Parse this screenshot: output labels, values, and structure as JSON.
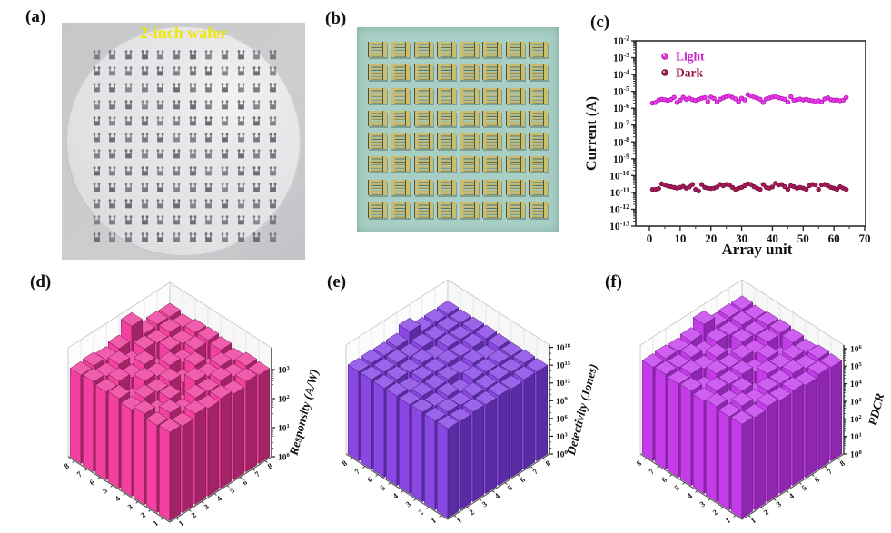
{
  "figure": {
    "panels": {
      "a": {
        "label": "(a)",
        "photo_caption": "2-inch wafer",
        "wafer_grid_rows": 12,
        "wafer_grid_cols": 12
      },
      "b": {
        "label": "(b)",
        "array_rows": 8,
        "array_cols": 8
      },
      "c": {
        "label": "(c)"
      },
      "d": {
        "label": "(d)"
      },
      "e": {
        "label": "(e)"
      },
      "f": {
        "label": "(f)"
      }
    }
  },
  "colors": {
    "light_series": "#DD22DD",
    "dark_series": "#9B1048",
    "bars_d": "#F4409F",
    "bars_e": "#8B47E3",
    "bars_f": "#C43CE7",
    "wafer_caption": "#F0E60A"
  },
  "chart_data": [
    {
      "id": "c",
      "type": "scatter",
      "xlabel": "Array unit",
      "ylabel": "Current (A)",
      "xlim": [
        0,
        70
      ],
      "xticks": [
        0,
        10,
        20,
        30,
        40,
        50,
        60,
        70
      ],
      "ylog": true,
      "ytick_exponents": [
        -2,
        -3,
        -4,
        -5,
        -6,
        -7,
        -8,
        -9,
        -10,
        -11,
        -12,
        -13
      ],
      "legend_position": "upper-left",
      "series": [
        {
          "name": "Light",
          "color": "#E73BE7",
          "edge": "#B40FB4",
          "text_color": "#CC22CC",
          "y": [
            2e-06,
            2.2e-06,
            3.1e-06,
            3.4e-06,
            3.2e-06,
            2.9e-06,
            3.3e-06,
            4.4e-06,
            2.2e-06,
            3e-06,
            4.5e-06,
            3.4e-06,
            3.9e-06,
            3.2e-06,
            2.9e-06,
            3.4e-06,
            3.9e-06,
            4.3e-06,
            2.5e-06,
            4.6e-06,
            3.8e-06,
            2.3e-06,
            3.4e-06,
            4.1e-06,
            5e-06,
            5.6e-06,
            4.4e-06,
            3.6e-06,
            2.5e-06,
            3.9e-06,
            3.1e-06,
            6.5e-06,
            5.4e-06,
            4.6e-06,
            4e-06,
            3.4e-06,
            2.2e-06,
            3.5e-06,
            4e-06,
            4.6e-06,
            4.9e-06,
            4.2e-06,
            3.8e-06,
            3.4e-06,
            2.3e-06,
            4.8e-06,
            3e-06,
            3.2e-06,
            3.5e-06,
            3.1e-06,
            3.4e-06,
            3e-06,
            2.8e-06,
            2.5e-06,
            2.8e-06,
            2.3e-06,
            3.6e-06,
            4.2e-06,
            3.2e-06,
            3e-06,
            3.1e-06,
            2.8e-06,
            3e-06,
            4.3e-06
          ]
        },
        {
          "name": "Dark",
          "color": "#A8195A",
          "edge": "#700E3B",
          "text_color": "#9B1048",
          "y": [
            1.5e-11,
            1.5e-11,
            1.7e-11,
            3.2e-11,
            2.8e-11,
            2.4e-11,
            2.2e-11,
            2e-11,
            1.8e-11,
            2e-11,
            2.3e-11,
            1.8e-11,
            2.1e-11,
            3e-11,
            1.5e-11,
            1.2e-11,
            3e-11,
            2e-11,
            1.8e-11,
            1.7e-11,
            1.8e-11,
            2.1e-11,
            3e-11,
            2.5e-11,
            3e-11,
            2.8e-11,
            2e-11,
            1.5e-11,
            1.8e-11,
            2e-11,
            2.5e-11,
            3.3e-11,
            3e-11,
            2.2e-11,
            1.8e-11,
            1.5e-11,
            3e-11,
            2e-11,
            1.8e-11,
            2.1e-11,
            3.5e-11,
            2.8e-11,
            3e-11,
            2.2e-11,
            1.5e-11,
            2.5e-11,
            2.2e-11,
            1.8e-11,
            2e-11,
            1.8e-11,
            1.5e-11,
            2.5e-11,
            3e-11,
            2.8e-11,
            1.5e-11,
            2.8e-11,
            3e-11,
            2.5e-11,
            2e-11,
            1.8e-11,
            1.5e-11,
            2.2e-11,
            1.8e-11,
            1.5e-11
          ]
        }
      ]
    },
    {
      "id": "d",
      "type": "bar3d",
      "zlabel": "Responsity (A/W)",
      "grid_rows": 8,
      "grid_cols": 8,
      "row_ticks": [
        1,
        2,
        3,
        4,
        5,
        6,
        7,
        8
      ],
      "col_ticks": [
        1,
        2,
        3,
        4,
        5,
        6,
        7,
        8
      ],
      "ztick_exponents": [
        0,
        1,
        2,
        3
      ],
      "zmax_exponent": 3.75,
      "colors": {
        "left": "#F4409F",
        "right": "#A22466",
        "top": "#F05DAD",
        "edge": "#7A1A4C"
      },
      "values": [
        1100,
        950,
        1300,
        1050,
        1200,
        900,
        1250,
        1100,
        1000,
        1400,
        800,
        1250,
        1100,
        1350,
        950,
        1200,
        1300,
        700,
        1200,
        300,
        1300,
        1000,
        1200,
        900,
        950,
        1250,
        1050,
        1250,
        600,
        1250,
        400,
        1150,
        1200,
        500,
        1300,
        1000,
        1250,
        800,
        1200,
        1300,
        1050,
        1300,
        900,
        1350,
        400,
        1200,
        1000,
        1250,
        1250,
        1000,
        1350,
        700,
        1250,
        1050,
        1300,
        1000,
        1100,
        1200,
        1000,
        1300,
        4000,
        1150,
        1250,
        1200
      ]
    },
    {
      "id": "e",
      "type": "bar3d",
      "zlabel": "Detectivity (Jones)",
      "grid_rows": 8,
      "grid_cols": 8,
      "row_ticks": [
        1,
        2,
        3,
        4,
        5,
        6,
        7,
        8
      ],
      "col_ticks": [
        1,
        2,
        3,
        4,
        5,
        6,
        7,
        8
      ],
      "ztick_exponents": [
        0,
        3,
        6,
        9,
        12,
        15,
        18
      ],
      "zmax_exponent": 18.4,
      "colors": {
        "left": "#8B47E3",
        "right": "#5A2CA2",
        "top": "#9B64EA",
        "edge": "#3F1D75"
      },
      "values": [
        1200000000000000.0,
        900000000000000.0,
        1400000000000000.0,
        1000000000000000.0,
        1300000000000000.0,
        800000000000000.0,
        1200000000000000.0,
        1000000000000000.0,
        1000000000000000.0,
        1500000000000000.0,
        700000000000000.0,
        1200000000000000.0,
        1000000000000000.0,
        1400000000000000.0,
        900000000000000.0,
        1200000000000000.0,
        1300000000000000.0,
        600000000000000.0,
        1200000000000000.0,
        200000000000000.0,
        1300000000000000.0,
        1000000000000000.0,
        1200000000000000.0,
        900000000000000.0,
        900000000000000.0,
        1200000000000000.0,
        1000000000000000.0,
        1300000000000000.0,
        500000000000000.0,
        1200000000000000.0,
        300000000000000.0,
        1100000000000000.0,
        1200000000000000.0,
        400000000000000.0,
        1300000000000000.0,
        1000000000000000.0,
        1200000000000000.0,
        700000000000000.0,
        1200000000000000.0,
        1300000000000000.0,
        1000000000000000.0,
        1300000000000000.0,
        800000000000000.0,
        1400000000000000.0,
        300000000000000.0,
        1200000000000000.0,
        1000000000000000.0,
        1200000000000000.0,
        1200000000000000.0,
        1000000000000000.0,
        1400000000000000.0,
        600000000000000.0,
        1200000000000000.0,
        1000000000000000.0,
        1300000000000000.0,
        1000000000000000.0,
        1100000000000000.0,
        1200000000000000.0,
        1000000000000000.0,
        1300000000000000.0,
        2e+16,
        1100000000000000.0,
        1200000000000000.0,
        1200000000000000.0
      ]
    },
    {
      "id": "f",
      "type": "bar3d",
      "zlabel": "PDCR",
      "grid_rows": 8,
      "grid_cols": 8,
      "row_ticks": [
        1,
        2,
        3,
        4,
        5,
        6,
        7,
        8
      ],
      "col_ticks": [
        1,
        2,
        3,
        4,
        5,
        6,
        7,
        8
      ],
      "ztick_exponents": [
        0,
        1,
        2,
        3,
        4,
        5,
        6
      ],
      "zmax_exponent": 6.2,
      "colors": {
        "left": "#C43CE7",
        "right": "#8D27AE",
        "top": "#CF5FF0",
        "edge": "#6B1C86"
      },
      "values": [
        220000.0,
        180000.0,
        260000.0,
        200000.0,
        240000.0,
        170000.0,
        240000.0,
        210000.0,
        200000.0,
        280000.0,
        150000.0,
        240000.0,
        210000.0,
        270000.0,
        180000.0,
        230000.0,
        260000.0,
        130000.0,
        230000.0,
        40000.0,
        260000.0,
        200000.0,
        230000.0,
        170000.0,
        180000.0,
        240000.0,
        200000.0,
        250000.0,
        110000.0,
        240000.0,
        60000.0,
        220000.0,
        230000.0,
        90000.0,
        260000.0,
        200000.0,
        240000.0,
        150000.0,
        230000.0,
        260000.0,
        200000.0,
        260000.0,
        170000.0,
        270000.0,
        60000.0,
        230000.0,
        200000.0,
        240000.0,
        240000.0,
        200000.0,
        270000.0,
        130000.0,
        240000.0,
        200000.0,
        260000.0,
        200000.0,
        210000.0,
        230000.0,
        200000.0,
        260000.0,
        800000.0,
        220000.0,
        240000.0,
        230000.0
      ]
    }
  ]
}
